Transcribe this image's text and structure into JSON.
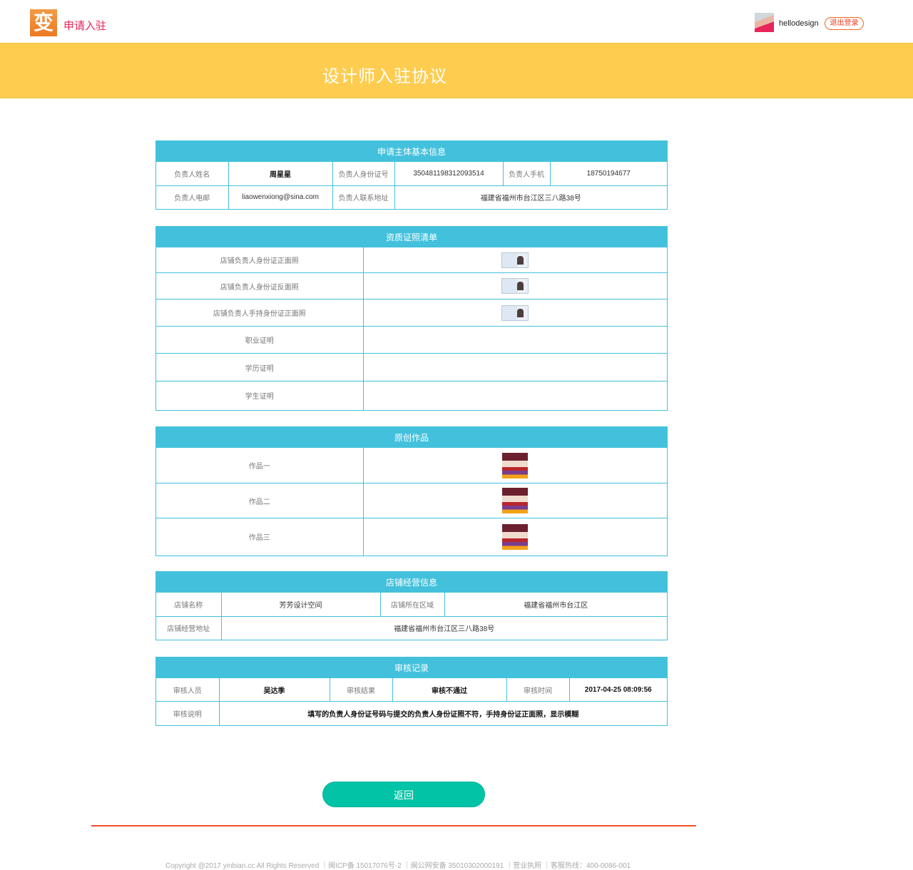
{
  "header": {
    "logo_char": "变",
    "brand": "申请入驻",
    "username": "hellodesign",
    "logout": "退出登录"
  },
  "banner": {
    "title": "设计师入驻协议"
  },
  "basic": {
    "title": "申请主体基本信息",
    "name_label": "负责人姓名",
    "name": "周星星",
    "id_label": "负责人身份证号",
    "id": "350481198312093514",
    "phone_label": "负责人手机",
    "phone": "18750194677",
    "email_label": "负责人电邮",
    "email": "liaowenxiong@sina.com",
    "addr_label": "负责人联系地址",
    "addr": "福建省福州市台江区三八路38号"
  },
  "qual": {
    "title": "资质证照清单",
    "rows": [
      {
        "label": "店铺负责人身份证正面照",
        "has_image": true
      },
      {
        "label": "店铺负责人身份证反面照",
        "has_image": true
      },
      {
        "label": "店铺负责人手持身份证正面照",
        "has_image": true
      },
      {
        "label": "职业证明",
        "has_image": false
      },
      {
        "label": "学历证明",
        "has_image": false
      },
      {
        "label": "学生证明",
        "has_image": false
      }
    ]
  },
  "works": {
    "title": "原创作品",
    "rows": [
      {
        "label": "作品一"
      },
      {
        "label": "作品二"
      },
      {
        "label": "作品三"
      }
    ]
  },
  "shop": {
    "title": "店铺经营信息",
    "name_label": "店铺名称",
    "name": "芳芳设计空间",
    "region_label": "店铺所在区域",
    "region": "福建省福州市台江区",
    "addr_label": "店铺经营地址",
    "addr": "福建省福州市台江区三八路38号"
  },
  "audit": {
    "title": "审核记录",
    "person_label": "审核人员",
    "person": "吴达季",
    "result_label": "审核结果",
    "result": "审核不通过",
    "time_label": "审核时间",
    "time": "2017-04-25 08:09:56",
    "note_label": "审核说明",
    "note": "填写的负责人身份证号码与提交的负责人身份证照不符，手持身份证正面照，显示模糊"
  },
  "back_button": "返回",
  "footer": "Copyright @2017 yinbian.cc All Rights Reserved ｜闽ICP备 15017076号-2 ｜闽公网安备 35010302000191 ｜营业执照 ｜客服热线：400-0086-001",
  "colors": {
    "accent": "#43c1dc",
    "banner": "#fecd50",
    "button": "#03c3a6",
    "brand": "#e8235a"
  }
}
